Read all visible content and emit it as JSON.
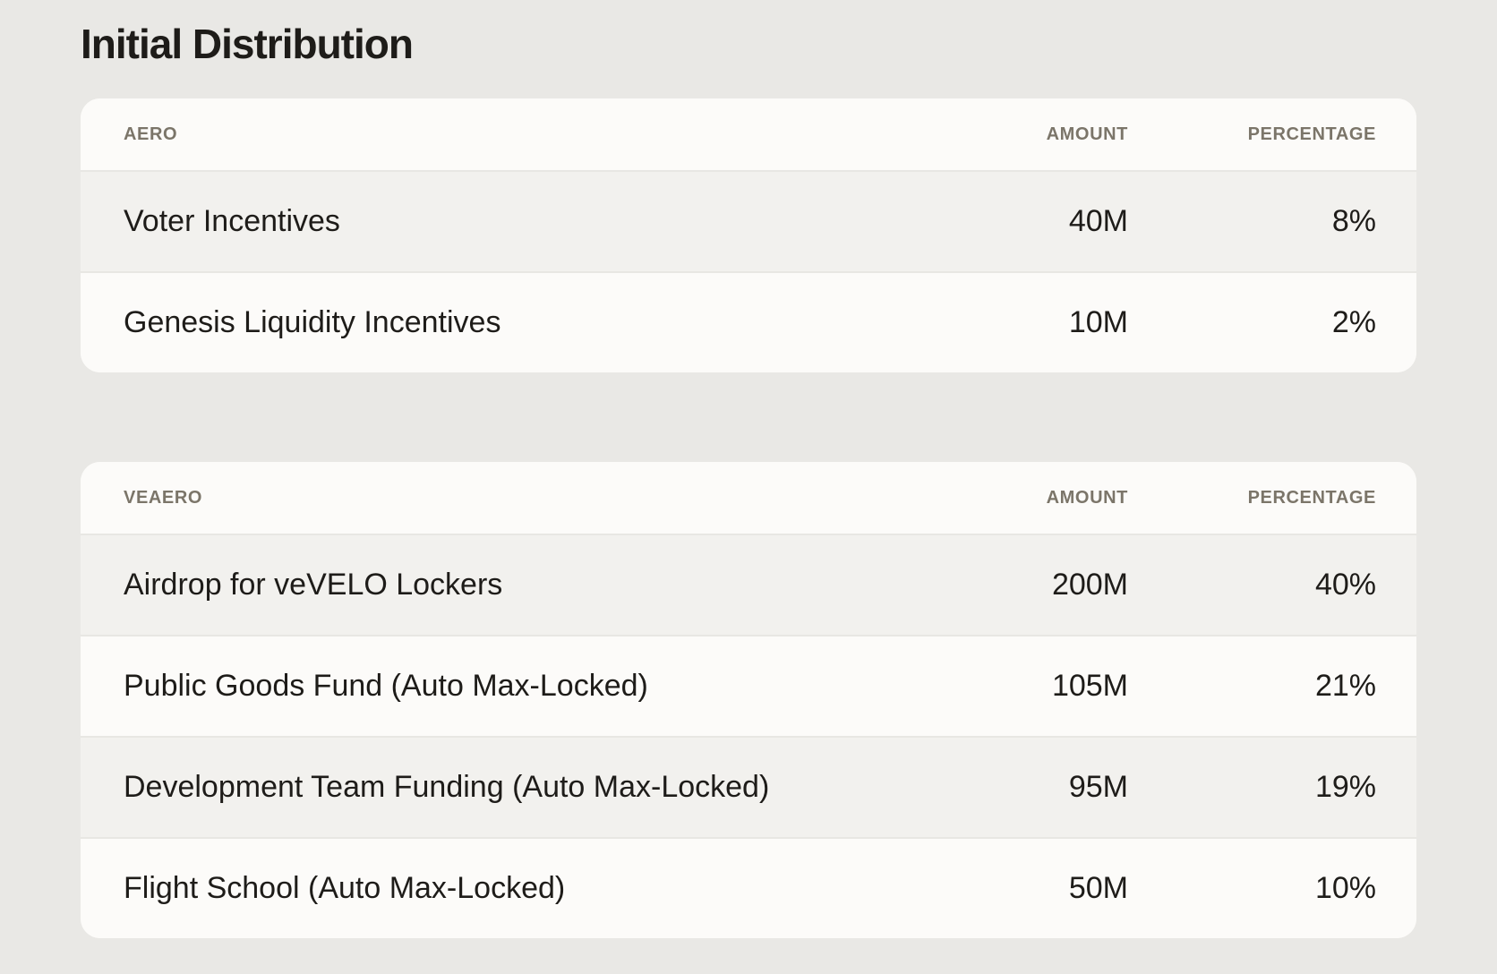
{
  "page": {
    "title": "Initial Distribution"
  },
  "tables": [
    {
      "columns": [
        "AERO",
        "AMOUNT",
        "PERCENTAGE"
      ],
      "rows": [
        {
          "name": "Voter Incentives",
          "amount": "40M",
          "percentage": "8%"
        },
        {
          "name": "Genesis Liquidity Incentives",
          "amount": "10M",
          "percentage": "2%"
        }
      ]
    },
    {
      "columns": [
        "VEAERO",
        "AMOUNT",
        "PERCENTAGE"
      ],
      "rows": [
        {
          "name": "Airdrop for veVELO Lockers",
          "amount": "200M",
          "percentage": "40%"
        },
        {
          "name": "Public Goods Fund (Auto Max-Locked)",
          "amount": "105M",
          "percentage": "21%"
        },
        {
          "name": "Development Team Funding (Auto Max-Locked)",
          "amount": "95M",
          "percentage": "19%"
        },
        {
          "name": "Flight School (Auto Max-Locked)",
          "amount": "50M",
          "percentage": "10%"
        }
      ]
    }
  ],
  "colors": {
    "page_background": "#e9e8e5",
    "card_background": "#fcfbf9",
    "row_shaded": "#f2f1ee",
    "row_divider": "#e8e7e3",
    "text": "#1e1c19",
    "header_text": "#7b7569"
  }
}
